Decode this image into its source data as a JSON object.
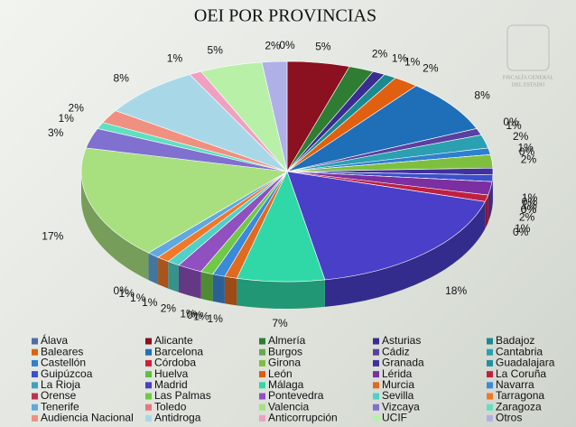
{
  "chart_data": {
    "type": "pie3d",
    "title": "OEI POR PROVINCIAS",
    "logo_text": [
      "FISCALÍA GENERAL",
      "DEL ESTADO"
    ],
    "categories": [
      "Álava",
      "Alicante",
      "Almería",
      "Asturias",
      "Badajoz",
      "Baleares",
      "Barcelona",
      "Burgos",
      "Cádiz",
      "Cantabria",
      "Castellón",
      "Córdoba",
      "Girona",
      "Granada",
      "Guadalajara",
      "Guipúzcoa",
      "Huelva",
      "León",
      "Lérida",
      "La Coruña",
      "La Rioja",
      "Madrid",
      "Málaga",
      "Murcia",
      "Navarra",
      "Orense",
      "Las Palmas",
      "Pontevedra",
      "Sevilla",
      "Tarragona",
      "Tenerife",
      "Toledo",
      "Valencia",
      "Vizcaya",
      "Zaragoza",
      "Audiencia Nacional",
      "Antidroga",
      "Anticorrupción",
      "UCIF",
      "Otros"
    ],
    "values": [
      0,
      5,
      2,
      1,
      1,
      2,
      8,
      0,
      1,
      2,
      1,
      0,
      2,
      1,
      0,
      1,
      0,
      0,
      2,
      1,
      0,
      18,
      7,
      1,
      1,
      0,
      1,
      2,
      1,
      1,
      1,
      0,
      17,
      3,
      1,
      2,
      8,
      1,
      5,
      2
    ],
    "value_labels": [
      "0%",
      "5%",
      "2%",
      "1%",
      "1%",
      "2%",
      "8%",
      "0%",
      "1%",
      "2%",
      "1%",
      "0%",
      "2%",
      "1%",
      "0%",
      "1%",
      "0%",
      "0%",
      "2%",
      "1%",
      "0%",
      "18%",
      "7%",
      "1%",
      "1%",
      "0%",
      "1%",
      "2%",
      "1%",
      "1%",
      "1%",
      "0%",
      "17%",
      "3%",
      "1%",
      "2%",
      "8%",
      "1%",
      "5%",
      "2%"
    ],
    "colors": [
      "#4a6fa5",
      "#8b1020",
      "#2e7d32",
      "#3b2d8f",
      "#1b8a8f",
      "#e06010",
      "#1f6fb8",
      "#6aa84f",
      "#5b3fa0",
      "#2aa0b0",
      "#2f7fd0",
      "#d0203a",
      "#7fbf3f",
      "#4030a0",
      "#2090a0",
      "#3b4fc8",
      "#60c040",
      "#e05a10",
      "#7b2fa0",
      "#c02040",
      "#40a0c0",
      "#4a3fc8",
      "#30d8a8",
      "#e06a20",
      "#3a8ad8",
      "#c03050",
      "#70c848",
      "#9050c0",
      "#50d0c8",
      "#f07828",
      "#60a8e0",
      "#e87878",
      "#a8e080",
      "#8070d0",
      "#60e0c0",
      "#f09080",
      "#a8d8e8",
      "#f0a0c0",
      "#b8f0a8",
      "#b0b0e8"
    ],
    "legend": "bottom"
  }
}
